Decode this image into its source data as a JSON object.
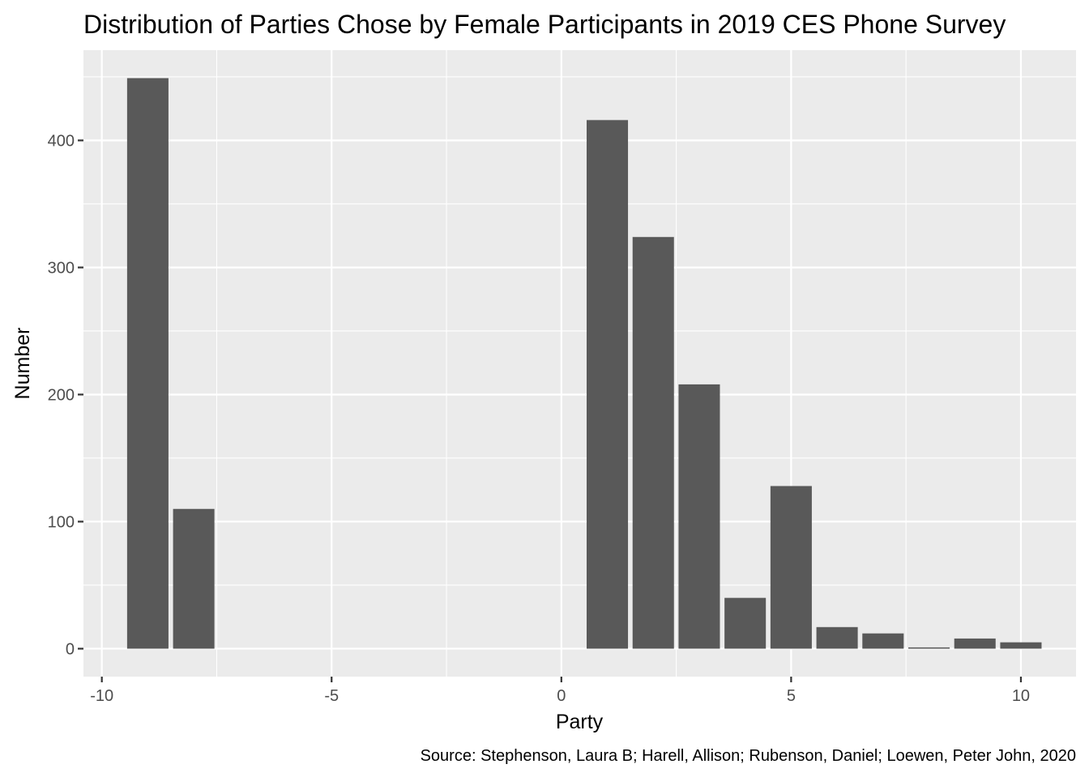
{
  "chart_data": {
    "type": "bar",
    "title": "Distribution of Parties Chose by Female Participants in 2019 CES Phone Survey",
    "xlabel": "Party",
    "ylabel": "Number",
    "caption": "Source: Stephenson, Laura B; Harell, Allison; Rubenson, Daniel; Loewen, Peter John, 2020",
    "x": [
      -9,
      -8,
      1,
      2,
      3,
      4,
      5,
      6,
      7,
      8,
      9,
      10
    ],
    "values": [
      449,
      110,
      416,
      324,
      208,
      40,
      128,
      17,
      12,
      1,
      8,
      5
    ],
    "xlim": [
      -10.4,
      11.2
    ],
    "ylim": [
      -22,
      471
    ],
    "x_ticks": [
      -10,
      -5,
      0,
      5,
      10
    ],
    "x_tick_labels": [
      "-10",
      "-5",
      "0",
      "5",
      "10"
    ],
    "y_ticks": [
      0,
      100,
      200,
      300,
      400
    ],
    "y_tick_labels": [
      "0",
      "100",
      "200",
      "300",
      "400"
    ],
    "grid": true,
    "bar_color": "#595959",
    "panel_color": "#ebebeb",
    "grid_color": "#ffffff"
  }
}
